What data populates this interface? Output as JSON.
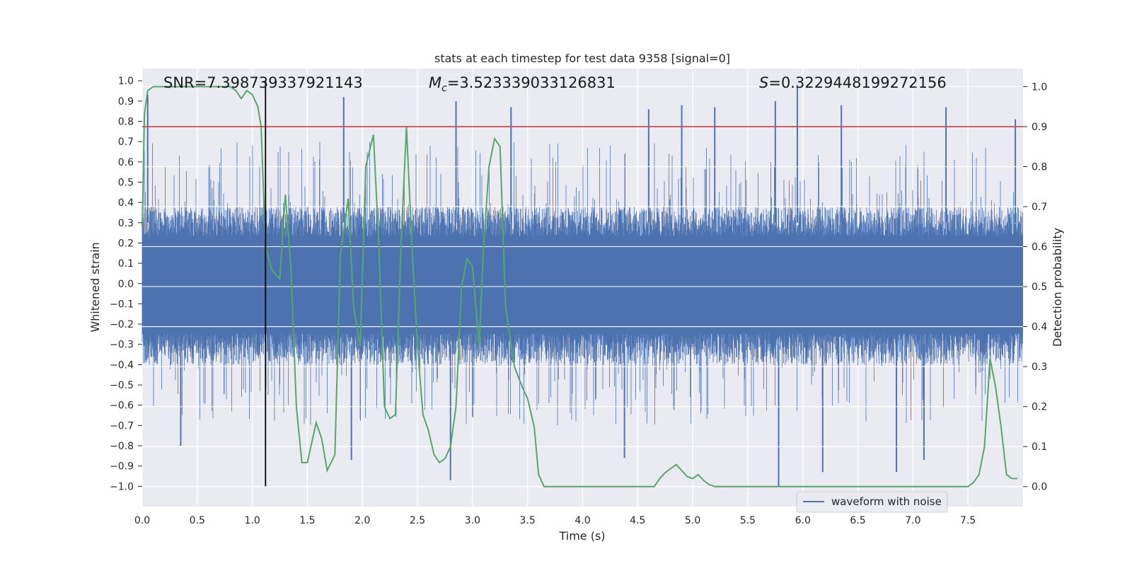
{
  "chart_data": {
    "type": "line",
    "title": "stats at each timestep for test data 9358 [signal=0]",
    "xlabel": "Time (s)",
    "ylabel_left": "Whitened strain",
    "ylabel_right": "Detection probability",
    "xlim": [
      0.0,
      8.0
    ],
    "ylim_left": [
      -1.1,
      1.06
    ],
    "ylim_right": [
      -0.05,
      1.045
    ],
    "x_ticks": [
      "0.0",
      "0.5",
      "1.0",
      "1.5",
      "2.0",
      "2.5",
      "3.0",
      "3.5",
      "4.0",
      "4.5",
      "5.0",
      "5.5",
      "6.0",
      "6.5",
      "7.0",
      "7.5"
    ],
    "y_left_ticks": [
      "1.0",
      "0.9",
      "0.8",
      "0.7",
      "0.6",
      "0.5",
      "0.4",
      "0.3",
      "0.2",
      "0.1",
      "0.0",
      "-0.1",
      "-0.2",
      "-0.3",
      "-0.4",
      "-0.5",
      "-0.6",
      "-0.7",
      "-0.8",
      "-0.9",
      "-1.0"
    ],
    "y_right_ticks": [
      "1.0",
      "0.9",
      "0.8",
      "0.7",
      "0.6",
      "0.5",
      "0.4",
      "0.3",
      "0.2",
      "0.1",
      "0.0"
    ],
    "annotations": {
      "snr": "SNR=7.398739337921143",
      "mc_symbol": "M",
      "mc_subscript": "c",
      "mc_value": "=3.523339033126831",
      "s_symbol": "S",
      "s_value": "=0.3229448199272156"
    },
    "threshold": {
      "value": 0.9,
      "axis": "right",
      "color": "#c44e52"
    },
    "vertical_marker": {
      "x": 1.12,
      "color": "#000000"
    },
    "legend": {
      "label": "waveform with noise",
      "location": "lower right"
    },
    "colors": {
      "waveform": "#4c72b0",
      "probability": "#55a868",
      "axes_background": "#eaeaf2",
      "grid": "#ffffff"
    },
    "series": [
      {
        "name": "waveform with noise",
        "axis": "left",
        "style": "dense noise band",
        "core_envelope": [
          -0.4,
          0.38
        ],
        "peaks": [
          {
            "x": 0.05,
            "y": 0.93
          },
          {
            "x": 1.83,
            "y": 0.92
          },
          {
            "x": 2.85,
            "y": 0.9
          },
          {
            "x": 3.35,
            "y": 0.87
          },
          {
            "x": 4.6,
            "y": 0.86
          },
          {
            "x": 4.9,
            "y": 0.88
          },
          {
            "x": 5.2,
            "y": 0.87
          },
          {
            "x": 5.75,
            "y": 0.9
          },
          {
            "x": 5.95,
            "y": 0.98
          },
          {
            "x": 6.35,
            "y": 0.88
          },
          {
            "x": 7.3,
            "y": 0.87
          },
          {
            "x": 7.93,
            "y": 0.81
          }
        ],
        "troughs": [
          {
            "x": 0.35,
            "y": -0.8
          },
          {
            "x": 1.9,
            "y": -0.87
          },
          {
            "x": 2.8,
            "y": -0.97
          },
          {
            "x": 4.38,
            "y": -0.86
          },
          {
            "x": 5.78,
            "y": -1.0
          },
          {
            "x": 6.18,
            "y": -0.93
          },
          {
            "x": 6.85,
            "y": -0.93
          },
          {
            "x": 7.1,
            "y": -0.87
          }
        ]
      },
      {
        "name": "detection probability",
        "axis": "right",
        "x": [
          0.0,
          0.02,
          0.05,
          0.1,
          0.2,
          0.4,
          0.6,
          0.8,
          0.85,
          0.9,
          0.95,
          1.0,
          1.05,
          1.08,
          1.12,
          1.18,
          1.25,
          1.3,
          1.35,
          1.4,
          1.45,
          1.5,
          1.58,
          1.63,
          1.68,
          1.75,
          1.8,
          1.87,
          1.92,
          1.98,
          2.03,
          2.1,
          2.15,
          2.2,
          2.25,
          2.3,
          2.35,
          2.4,
          2.45,
          2.5,
          2.55,
          2.6,
          2.65,
          2.7,
          2.75,
          2.8,
          2.85,
          2.9,
          2.95,
          3.0,
          3.06,
          3.1,
          3.15,
          3.2,
          3.25,
          3.3,
          3.38,
          3.45,
          3.5,
          3.56,
          3.6,
          3.65,
          3.72,
          3.8,
          3.9,
          4.0,
          4.1,
          4.2,
          4.3,
          4.4,
          4.5,
          4.6,
          4.65,
          4.7,
          4.75,
          4.8,
          4.85,
          4.9,
          4.95,
          5.0,
          5.05,
          5.1,
          5.15,
          5.2,
          5.3,
          5.4,
          5.5,
          5.6,
          5.7,
          5.8,
          5.9,
          6.0,
          6.1,
          6.2,
          6.3,
          6.4,
          6.5,
          6.6,
          6.7,
          6.8,
          6.9,
          7.0,
          7.1,
          7.2,
          7.3,
          7.4,
          7.5,
          7.55,
          7.6,
          7.65,
          7.7,
          7.75,
          7.8,
          7.85,
          7.9,
          7.95
        ],
        "values": [
          0.65,
          0.93,
          0.99,
          1.0,
          1.0,
          1.0,
          1.0,
          1.0,
          0.99,
          0.97,
          0.99,
          0.98,
          0.95,
          0.9,
          0.6,
          0.54,
          0.52,
          0.73,
          0.55,
          0.2,
          0.06,
          0.06,
          0.16,
          0.12,
          0.04,
          0.08,
          0.58,
          0.72,
          0.45,
          0.35,
          0.8,
          0.88,
          0.6,
          0.2,
          0.17,
          0.18,
          0.6,
          0.9,
          0.6,
          0.35,
          0.18,
          0.14,
          0.08,
          0.06,
          0.07,
          0.1,
          0.2,
          0.5,
          0.57,
          0.55,
          0.35,
          0.6,
          0.8,
          0.87,
          0.85,
          0.45,
          0.3,
          0.25,
          0.22,
          0.15,
          0.03,
          0.0,
          0.0,
          0.0,
          0.0,
          0.0,
          0.0,
          0.0,
          0.0,
          0.0,
          0.0,
          0.0,
          0.0,
          0.02,
          0.035,
          0.045,
          0.055,
          0.04,
          0.025,
          0.02,
          0.03,
          0.015,
          0.005,
          0.0,
          0.0,
          0.0,
          0.0,
          0.0,
          0.0,
          0.0,
          0.0,
          0.0,
          0.0,
          0.0,
          0.0,
          0.0,
          0.0,
          0.0,
          0.0,
          0.0,
          0.0,
          0.0,
          0.0,
          0.0,
          0.0,
          0.0,
          0.0,
          0.01,
          0.03,
          0.1,
          0.32,
          0.25,
          0.15,
          0.03,
          0.02,
          0.02
        ]
      }
    ]
  }
}
